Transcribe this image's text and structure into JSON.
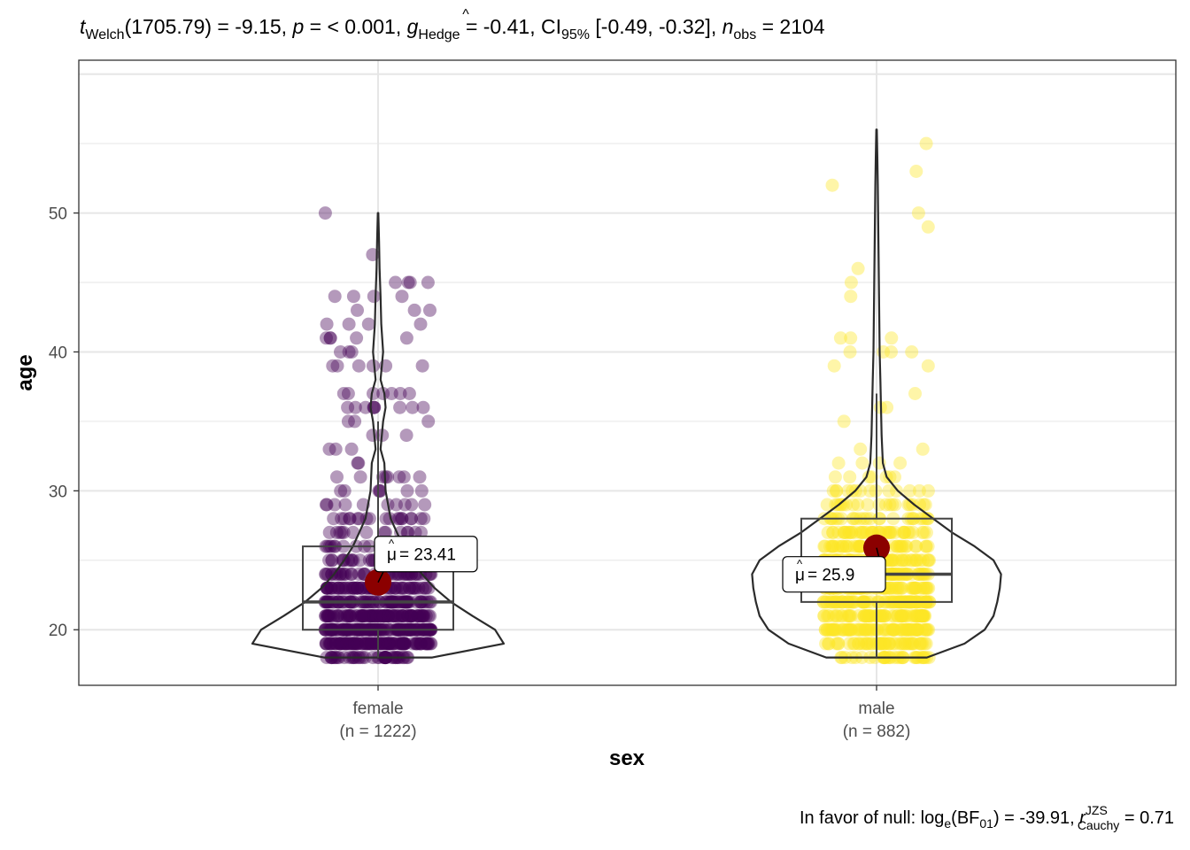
{
  "subtitle": {
    "t_symbol": "t",
    "t_sub": "Welch",
    "df": "(1705.79) = -9.15, ",
    "p_symbol": "p",
    "p_text": " = < 0.001, ",
    "g_symbol": "g",
    "g_sub": "Hedge",
    "g_text": " = -0.41, CI",
    "ci_sub": "95%",
    "ci_text": " [-0.49, -0.32], ",
    "n_symbol": "n",
    "n_sub": "obs",
    "n_text": " = 2104"
  },
  "caption": {
    "prefix": "In favor of null: log",
    "log_sub": "e",
    "bf_text": "(BF",
    "bf_sub": "01",
    "bf_value": ") = -39.91, ",
    "r_symbol": "r",
    "r_sup": "JZS",
    "r_sub": "Cauchy",
    "r_value": " = 0.71"
  },
  "chart_data": {
    "type": "violin-box-scatter",
    "xlabel": "sex",
    "ylabel": "age",
    "ylim": [
      16,
      61
    ],
    "yticks": [
      20,
      30,
      40,
      50
    ],
    "grid": true,
    "groups": [
      {
        "name": "female",
        "n_label": "(n = 1222)",
        "n": 1222,
        "color": "#440154",
        "min": 18,
        "q1": 20,
        "median": 22,
        "q3": 26,
        "max": 50,
        "whisker_high": 35,
        "mean": 23.41,
        "mean_label": "= 23.41",
        "mu_symbol": "μ",
        "violin": [
          [
            18,
            0.43
          ],
          [
            19,
            1.0
          ],
          [
            20,
            0.93
          ],
          [
            21,
            0.75
          ],
          [
            22,
            0.58
          ],
          [
            23,
            0.45
          ],
          [
            24,
            0.35
          ],
          [
            25,
            0.27
          ],
          [
            26,
            0.2
          ],
          [
            27,
            0.15
          ],
          [
            28,
            0.1
          ],
          [
            30,
            0.06
          ],
          [
            32,
            0.05
          ],
          [
            33,
            0.02
          ],
          [
            35,
            0.04
          ],
          [
            36,
            0.06
          ],
          [
            37,
            0.05
          ],
          [
            38,
            0.02
          ],
          [
            40,
            0.04
          ],
          [
            42,
            0.025
          ],
          [
            44,
            0.02
          ],
          [
            46,
            0.012
          ],
          [
            48,
            0.008
          ],
          [
            50,
            0.002
          ]
        ]
      },
      {
        "name": "male",
        "n_label": "(n = 882)",
        "n": 882,
        "color": "#FDE725",
        "min": 18,
        "q1": 22,
        "median": 24,
        "q3": 28,
        "max": 56,
        "whisker_high": 37,
        "mean": 25.9,
        "mean_label": "= 25.9",
        "mu_symbol": "μ",
        "violin": [
          [
            18,
            0.4
          ],
          [
            19,
            0.7
          ],
          [
            20,
            0.86
          ],
          [
            21,
            0.93
          ],
          [
            22,
            0.96
          ],
          [
            23,
            0.98
          ],
          [
            24,
            0.99
          ],
          [
            25,
            0.93
          ],
          [
            26,
            0.78
          ],
          [
            27,
            0.6
          ],
          [
            28,
            0.45
          ],
          [
            29,
            0.3
          ],
          [
            30,
            0.17
          ],
          [
            31,
            0.08
          ],
          [
            32,
            0.05
          ],
          [
            34,
            0.04
          ],
          [
            36,
            0.035
          ],
          [
            38,
            0.03
          ],
          [
            40,
            0.025
          ],
          [
            44,
            0.02
          ],
          [
            48,
            0.015
          ],
          [
            52,
            0.01
          ],
          [
            54,
            0.006
          ],
          [
            56,
            0.002
          ]
        ]
      }
    ],
    "mean_point_color": "#8B0000"
  }
}
